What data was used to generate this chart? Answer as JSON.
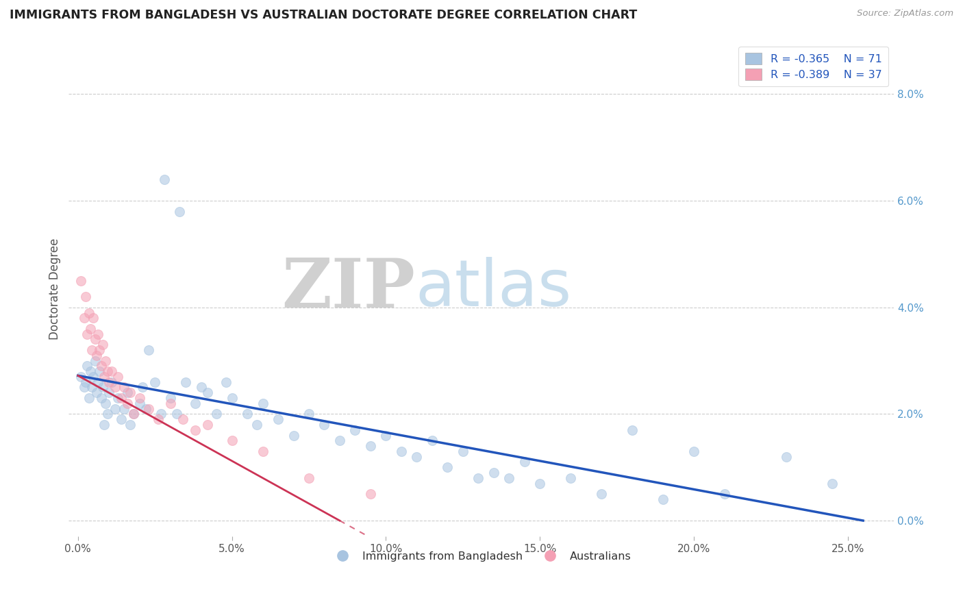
{
  "title": "IMMIGRANTS FROM BANGLADESH VS AUSTRALIAN DOCTORATE DEGREE CORRELATION CHART",
  "source": "Source: ZipAtlas.com",
  "xlabel_vals": [
    0.0,
    5.0,
    10.0,
    15.0,
    20.0,
    25.0
  ],
  "ylabel_vals": [
    0.0,
    2.0,
    4.0,
    6.0,
    8.0
  ],
  "ylabel_label": "Doctorate Degree",
  "xlim": [
    -0.3,
    26.5
  ],
  "ylim": [
    -0.3,
    9.0
  ],
  "legend_blue_r": "R = -0.365",
  "legend_blue_n": "N = 71",
  "legend_pink_r": "R = -0.389",
  "legend_pink_n": "N = 37",
  "legend_blue_label": "Immigrants from Bangladesh",
  "legend_pink_label": "Australians",
  "blue_color": "#a8c4e0",
  "pink_color": "#f4a0b4",
  "trendline_blue": "#2255bb",
  "trendline_pink": "#cc3355",
  "blue_scatter": [
    [
      0.1,
      2.7
    ],
    [
      0.2,
      2.5
    ],
    [
      0.25,
      2.6
    ],
    [
      0.3,
      2.9
    ],
    [
      0.35,
      2.3
    ],
    [
      0.4,
      2.8
    ],
    [
      0.45,
      2.5
    ],
    [
      0.5,
      2.7
    ],
    [
      0.55,
      3.0
    ],
    [
      0.6,
      2.4
    ],
    [
      0.65,
      2.6
    ],
    [
      0.7,
      2.8
    ],
    [
      0.75,
      2.3
    ],
    [
      0.8,
      2.5
    ],
    [
      0.85,
      1.8
    ],
    [
      0.9,
      2.2
    ],
    [
      0.95,
      2.0
    ],
    [
      1.0,
      2.4
    ],
    [
      1.1,
      2.6
    ],
    [
      1.2,
      2.1
    ],
    [
      1.3,
      2.3
    ],
    [
      1.4,
      1.9
    ],
    [
      1.5,
      2.1
    ],
    [
      1.6,
      2.4
    ],
    [
      1.7,
      1.8
    ],
    [
      1.8,
      2.0
    ],
    [
      2.0,
      2.2
    ],
    [
      2.1,
      2.5
    ],
    [
      2.2,
      2.1
    ],
    [
      2.3,
      3.2
    ],
    [
      2.5,
      2.6
    ],
    [
      2.7,
      2.0
    ],
    [
      3.0,
      2.3
    ],
    [
      3.2,
      2.0
    ],
    [
      3.5,
      2.6
    ],
    [
      3.8,
      2.2
    ],
    [
      4.0,
      2.5
    ],
    [
      4.2,
      2.4
    ],
    [
      4.5,
      2.0
    ],
    [
      4.8,
      2.6
    ],
    [
      5.0,
      2.3
    ],
    [
      5.5,
      2.0
    ],
    [
      5.8,
      1.8
    ],
    [
      6.0,
      2.2
    ],
    [
      6.5,
      1.9
    ],
    [
      7.0,
      1.6
    ],
    [
      7.5,
      2.0
    ],
    [
      8.0,
      1.8
    ],
    [
      8.5,
      1.5
    ],
    [
      9.0,
      1.7
    ],
    [
      9.5,
      1.4
    ],
    [
      10.0,
      1.6
    ],
    [
      10.5,
      1.3
    ],
    [
      11.0,
      1.2
    ],
    [
      11.5,
      1.5
    ],
    [
      12.0,
      1.0
    ],
    [
      12.5,
      1.3
    ],
    [
      13.0,
      0.8
    ],
    [
      13.5,
      0.9
    ],
    [
      14.0,
      0.8
    ],
    [
      14.5,
      1.1
    ],
    [
      15.0,
      0.7
    ],
    [
      16.0,
      0.8
    ],
    [
      17.0,
      0.5
    ],
    [
      18.0,
      1.7
    ],
    [
      19.0,
      0.4
    ],
    [
      20.0,
      1.3
    ],
    [
      21.0,
      0.5
    ],
    [
      23.0,
      1.2
    ],
    [
      24.5,
      0.7
    ],
    [
      2.8,
      6.4
    ],
    [
      3.3,
      5.8
    ]
  ],
  "pink_scatter": [
    [
      0.1,
      4.5
    ],
    [
      0.2,
      3.8
    ],
    [
      0.25,
      4.2
    ],
    [
      0.3,
      3.5
    ],
    [
      0.35,
      3.9
    ],
    [
      0.4,
      3.6
    ],
    [
      0.45,
      3.2
    ],
    [
      0.5,
      3.8
    ],
    [
      0.55,
      3.4
    ],
    [
      0.6,
      3.1
    ],
    [
      0.65,
      3.5
    ],
    [
      0.7,
      3.2
    ],
    [
      0.75,
      2.9
    ],
    [
      0.8,
      3.3
    ],
    [
      0.85,
      2.7
    ],
    [
      0.9,
      3.0
    ],
    [
      0.95,
      2.8
    ],
    [
      1.0,
      2.6
    ],
    [
      1.1,
      2.8
    ],
    [
      1.2,
      2.5
    ],
    [
      1.3,
      2.7
    ],
    [
      1.4,
      2.3
    ],
    [
      1.5,
      2.5
    ],
    [
      1.6,
      2.2
    ],
    [
      1.7,
      2.4
    ],
    [
      1.8,
      2.0
    ],
    [
      2.0,
      2.3
    ],
    [
      2.3,
      2.1
    ],
    [
      2.6,
      1.9
    ],
    [
      3.0,
      2.2
    ],
    [
      3.4,
      1.9
    ],
    [
      3.8,
      1.7
    ],
    [
      4.2,
      1.8
    ],
    [
      5.0,
      1.5
    ],
    [
      6.0,
      1.3
    ],
    [
      7.5,
      0.8
    ],
    [
      9.5,
      0.5
    ]
  ],
  "watermark_zip": "ZIP",
  "watermark_atlas": "atlas",
  "grid_color": "#cccccc",
  "marker_size": 100,
  "marker_alpha": 0.55,
  "figsize": [
    14.06,
    8.92
  ],
  "dpi": 100,
  "blue_trendline_x0": 0.0,
  "blue_trendline_y0": 2.72,
  "blue_trendline_x1": 25.5,
  "blue_trendline_y1": 0.0,
  "pink_trendline_x0": 0.0,
  "pink_trendline_y0": 2.72,
  "pink_trendline_x1": 8.5,
  "pink_trendline_y1": 0.0
}
